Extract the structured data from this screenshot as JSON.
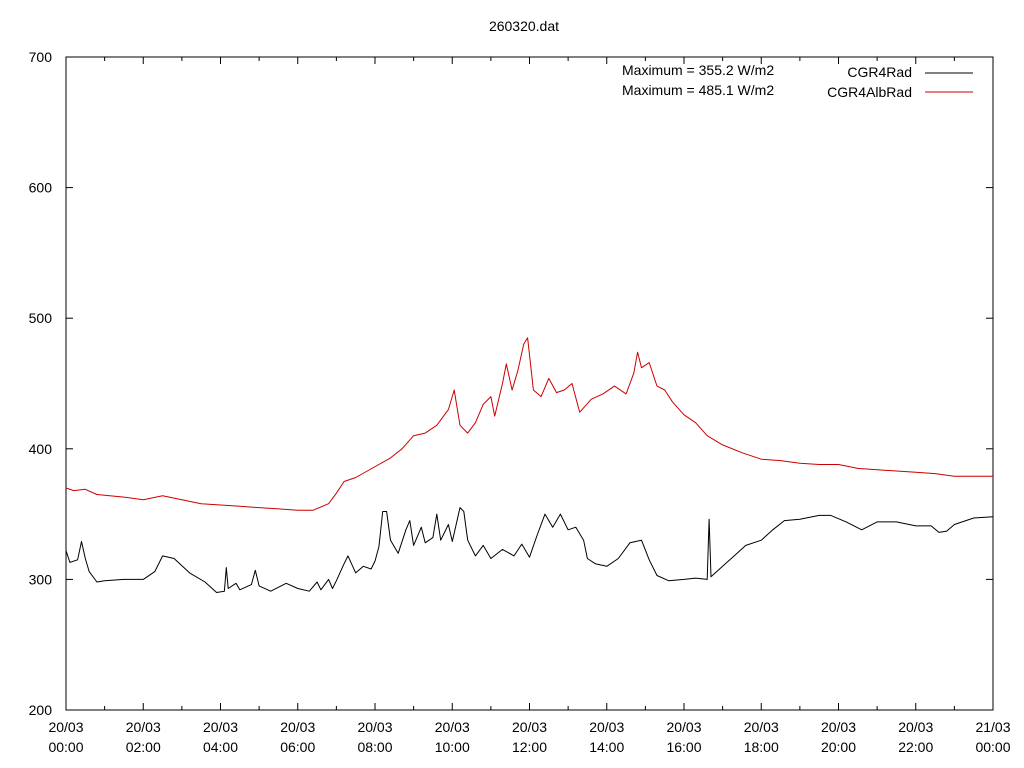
{
  "chart_data": {
    "type": "line",
    "title": "260320.dat",
    "xlabel": "",
    "ylabel": "",
    "ylim": [
      200,
      700
    ],
    "yticks": [
      200,
      300,
      400,
      500,
      600,
      700
    ],
    "xlim_hours": [
      0,
      24
    ],
    "xticks": [
      {
        "hour": 0,
        "line1": "20/03",
        "line2": "00:00"
      },
      {
        "hour": 2,
        "line1": "20/03",
        "line2": "02:00"
      },
      {
        "hour": 4,
        "line1": "20/03",
        "line2": "04:00"
      },
      {
        "hour": 6,
        "line1": "20/03",
        "line2": "06:00"
      },
      {
        "hour": 8,
        "line1": "20/03",
        "line2": "08:00"
      },
      {
        "hour": 10,
        "line1": "20/03",
        "line2": "10:00"
      },
      {
        "hour": 12,
        "line1": "20/03",
        "line2": "12:00"
      },
      {
        "hour": 14,
        "line1": "20/03",
        "line2": "14:00"
      },
      {
        "hour": 16,
        "line1": "20/03",
        "line2": "16:00"
      },
      {
        "hour": 18,
        "line1": "20/03",
        "line2": "18:00"
      },
      {
        "hour": 20,
        "line1": "20/03",
        "line2": "20:00"
      },
      {
        "hour": 22,
        "line1": "20/03",
        "line2": "22:00"
      },
      {
        "hour": 24,
        "line1": "21/03",
        "line2": "00:00"
      }
    ],
    "grid": false,
    "legend_position": "top-right",
    "annotations": [
      "Maximum = 355.2 W/m2",
      "Maximum = 485.1 W/m2"
    ],
    "series": [
      {
        "name": "CGR4Rad",
        "color": "#000000",
        "points": [
          [
            0.0,
            322
          ],
          [
            0.1,
            313
          ],
          [
            0.3,
            315
          ],
          [
            0.4,
            329
          ],
          [
            0.5,
            316
          ],
          [
            0.6,
            306
          ],
          [
            0.8,
            298
          ],
          [
            1.0,
            299
          ],
          [
            1.5,
            300
          ],
          [
            2.0,
            300
          ],
          [
            2.3,
            306
          ],
          [
            2.5,
            318
          ],
          [
            2.8,
            316
          ],
          [
            3.2,
            305
          ],
          [
            3.6,
            298
          ],
          [
            3.9,
            290
          ],
          [
            4.1,
            291
          ],
          [
            4.15,
            309
          ],
          [
            4.2,
            293
          ],
          [
            4.4,
            297
          ],
          [
            4.5,
            292
          ],
          [
            4.8,
            296
          ],
          [
            4.9,
            307
          ],
          [
            5.0,
            295
          ],
          [
            5.3,
            291
          ],
          [
            5.7,
            297
          ],
          [
            6.0,
            293
          ],
          [
            6.3,
            291
          ],
          [
            6.5,
            298
          ],
          [
            6.6,
            292
          ],
          [
            6.8,
            300
          ],
          [
            6.9,
            293
          ],
          [
            7.0,
            299
          ],
          [
            7.2,
            312
          ],
          [
            7.3,
            318
          ],
          [
            7.5,
            305
          ],
          [
            7.7,
            310
          ],
          [
            7.9,
            308
          ],
          [
            8.0,
            314
          ],
          [
            8.1,
            325
          ],
          [
            8.2,
            352
          ],
          [
            8.3,
            352
          ],
          [
            8.4,
            330
          ],
          [
            8.6,
            320
          ],
          [
            8.8,
            338
          ],
          [
            8.9,
            345
          ],
          [
            9.0,
            326
          ],
          [
            9.2,
            340
          ],
          [
            9.3,
            328
          ],
          [
            9.5,
            332
          ],
          [
            9.6,
            350
          ],
          [
            9.7,
            330
          ],
          [
            9.9,
            342
          ],
          [
            10.0,
            329
          ],
          [
            10.2,
            355
          ],
          [
            10.3,
            352
          ],
          [
            10.4,
            330
          ],
          [
            10.6,
            318
          ],
          [
            10.8,
            326
          ],
          [
            11.0,
            316
          ],
          [
            11.3,
            323
          ],
          [
            11.6,
            318
          ],
          [
            11.8,
            327
          ],
          [
            12.0,
            317
          ],
          [
            12.2,
            334
          ],
          [
            12.4,
            350
          ],
          [
            12.6,
            340
          ],
          [
            12.8,
            350
          ],
          [
            13.0,
            338
          ],
          [
            13.2,
            340
          ],
          [
            13.4,
            330
          ],
          [
            13.5,
            316
          ],
          [
            13.7,
            312
          ],
          [
            14.0,
            310
          ],
          [
            14.3,
            316
          ],
          [
            14.6,
            328
          ],
          [
            14.9,
            330
          ],
          [
            15.1,
            315
          ],
          [
            15.3,
            303
          ],
          [
            15.6,
            299
          ],
          [
            16.0,
            300
          ],
          [
            16.3,
            301
          ],
          [
            16.6,
            300
          ],
          [
            16.65,
            346
          ],
          [
            16.7,
            302
          ],
          [
            17.0,
            310
          ],
          [
            17.3,
            318
          ],
          [
            17.6,
            326
          ],
          [
            18.0,
            330
          ],
          [
            18.3,
            338
          ],
          [
            18.6,
            345
          ],
          [
            19.0,
            346
          ],
          [
            19.5,
            349
          ],
          [
            19.8,
            349
          ],
          [
            20.2,
            344
          ],
          [
            20.6,
            338
          ],
          [
            21.0,
            344
          ],
          [
            21.5,
            344
          ],
          [
            22.0,
            341
          ],
          [
            22.4,
            341
          ],
          [
            22.6,
            336
          ],
          [
            22.8,
            337
          ],
          [
            23.0,
            342
          ],
          [
            23.5,
            347
          ],
          [
            24.0,
            348
          ]
        ]
      },
      {
        "name": "CGR4AlbRad",
        "color": "#cc0000",
        "points": [
          [
            0.0,
            370
          ],
          [
            0.2,
            368
          ],
          [
            0.5,
            369
          ],
          [
            0.8,
            365
          ],
          [
            1.5,
            363
          ],
          [
            2.0,
            361
          ],
          [
            2.5,
            364
          ],
          [
            3.0,
            361
          ],
          [
            3.5,
            358
          ],
          [
            4.0,
            357
          ],
          [
            4.5,
            356
          ],
          [
            5.0,
            355
          ],
          [
            5.5,
            354
          ],
          [
            6.0,
            353
          ],
          [
            6.4,
            353
          ],
          [
            6.8,
            358
          ],
          [
            7.0,
            366
          ],
          [
            7.2,
            375
          ],
          [
            7.5,
            378
          ],
          [
            7.8,
            383
          ],
          [
            8.1,
            388
          ],
          [
            8.4,
            393
          ],
          [
            8.7,
            400
          ],
          [
            9.0,
            410
          ],
          [
            9.3,
            412
          ],
          [
            9.6,
            418
          ],
          [
            9.9,
            430
          ],
          [
            10.05,
            445
          ],
          [
            10.2,
            418
          ],
          [
            10.4,
            412
          ],
          [
            10.6,
            420
          ],
          [
            10.8,
            434
          ],
          [
            11.0,
            440
          ],
          [
            11.1,
            425
          ],
          [
            11.3,
            450
          ],
          [
            11.4,
            465
          ],
          [
            11.55,
            445
          ],
          [
            11.7,
            460
          ],
          [
            11.85,
            480
          ],
          [
            11.95,
            485
          ],
          [
            12.1,
            445
          ],
          [
            12.3,
            440
          ],
          [
            12.5,
            454
          ],
          [
            12.7,
            443
          ],
          [
            12.9,
            445
          ],
          [
            13.1,
            450
          ],
          [
            13.3,
            428
          ],
          [
            13.6,
            438
          ],
          [
            13.9,
            442
          ],
          [
            14.2,
            448
          ],
          [
            14.5,
            442
          ],
          [
            14.7,
            458
          ],
          [
            14.8,
            474
          ],
          [
            14.9,
            462
          ],
          [
            15.1,
            466
          ],
          [
            15.3,
            448
          ],
          [
            15.5,
            445
          ],
          [
            15.7,
            436
          ],
          [
            16.0,
            426
          ],
          [
            16.3,
            420
          ],
          [
            16.6,
            410
          ],
          [
            17.0,
            403
          ],
          [
            17.5,
            397
          ],
          [
            18.0,
            392
          ],
          [
            18.5,
            391
          ],
          [
            19.0,
            389
          ],
          [
            19.5,
            388
          ],
          [
            20.0,
            388
          ],
          [
            20.5,
            385
          ],
          [
            21.0,
            384
          ],
          [
            21.5,
            383
          ],
          [
            22.0,
            382
          ],
          [
            22.5,
            381
          ],
          [
            23.0,
            379
          ],
          [
            23.5,
            379
          ],
          [
            24.0,
            379
          ]
        ]
      }
    ]
  }
}
